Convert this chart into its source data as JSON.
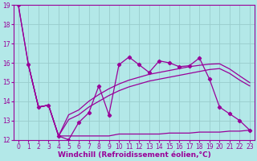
{
  "background_color": "#b3e8e8",
  "grid_color": "#99cccc",
  "line_color": "#990099",
  "xlabel": "Windchill (Refroidissement éolien,°C)",
  "xlim": [
    -0.5,
    23.5
  ],
  "ylim": [
    12,
    19
  ],
  "yticks": [
    12,
    13,
    14,
    15,
    16,
    17,
    18,
    19
  ],
  "xticks": [
    0,
    1,
    2,
    3,
    4,
    5,
    6,
    7,
    8,
    9,
    10,
    11,
    12,
    13,
    14,
    15,
    16,
    17,
    18,
    19,
    20,
    21,
    22,
    23
  ],
  "line1_x": [
    0,
    1,
    2,
    3,
    4,
    5,
    6,
    7,
    8,
    9,
    10,
    11,
    12,
    13,
    14,
    15,
    16,
    17,
    18,
    19,
    20,
    21,
    22,
    23
  ],
  "line1_y": [
    19.0,
    15.9,
    13.7,
    13.8,
    12.2,
    12.0,
    12.9,
    13.4,
    14.8,
    13.3,
    15.9,
    16.3,
    15.9,
    15.5,
    16.1,
    16.0,
    15.8,
    15.85,
    16.25,
    15.15,
    13.7,
    13.35,
    13.0,
    12.5
  ],
  "line2_x": [
    0,
    1,
    2,
    3,
    4,
    5,
    6,
    7,
    8,
    9,
    10,
    11,
    12,
    13,
    14,
    15,
    16,
    17,
    18,
    19,
    20,
    21,
    22,
    23
  ],
  "line2_y": [
    19.0,
    15.9,
    13.7,
    13.8,
    12.2,
    12.2,
    12.2,
    12.2,
    12.2,
    12.2,
    12.3,
    12.3,
    12.3,
    12.3,
    12.3,
    12.35,
    12.35,
    12.35,
    12.4,
    12.4,
    12.4,
    12.45,
    12.45,
    12.5
  ],
  "line3_x": [
    1,
    2,
    3,
    4,
    5,
    6,
    7,
    8,
    9,
    10,
    11,
    12,
    13,
    14,
    15,
    16,
    17,
    18,
    19,
    20,
    21,
    22,
    23
  ],
  "line3_y": [
    15.9,
    13.7,
    13.8,
    12.2,
    13.05,
    13.3,
    13.7,
    14.0,
    14.3,
    14.55,
    14.75,
    14.9,
    15.05,
    15.15,
    15.25,
    15.35,
    15.45,
    15.55,
    15.65,
    15.7,
    15.45,
    15.1,
    14.8
  ],
  "line4_x": [
    1,
    2,
    3,
    4,
    5,
    6,
    7,
    8,
    9,
    10,
    11,
    12,
    13,
    14,
    15,
    16,
    17,
    18,
    19,
    20,
    21,
    22,
    23
  ],
  "line4_y": [
    15.9,
    13.7,
    13.8,
    12.2,
    13.3,
    13.55,
    14.0,
    14.35,
    14.65,
    14.9,
    15.1,
    15.25,
    15.4,
    15.5,
    15.6,
    15.7,
    15.8,
    15.87,
    15.93,
    15.95,
    15.68,
    15.32,
    14.97
  ],
  "tick_fontsize": 5.5,
  "xlabel_fontsize": 6.5
}
